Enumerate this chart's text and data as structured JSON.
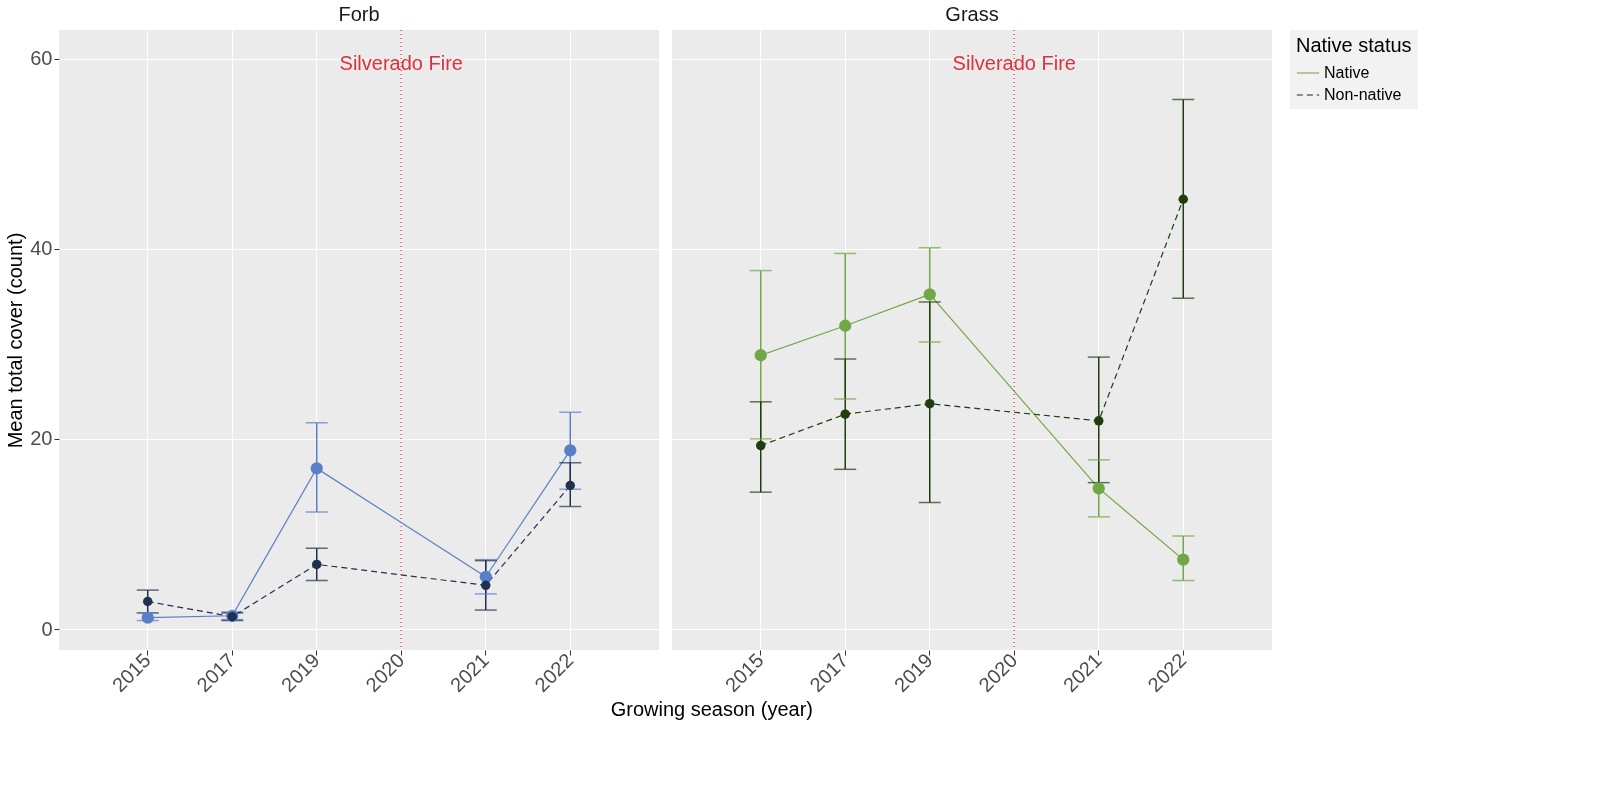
{
  "chart_data": [
    {
      "type": "line",
      "title": "Forb",
      "xlabel": "Growing season (year)",
      "ylabel": "Mean total cover (count)",
      "categories": [
        "2015",
        "2017",
        "2019",
        "2020",
        "2021",
        "2022"
      ],
      "ylim": [
        -2.2,
        63
      ],
      "yticks": [
        0,
        20,
        40,
        60
      ],
      "grid": true,
      "marker": "circle",
      "legend": false,
      "series": [
        {
          "color": "#5b7fc6",
          "line_style": "solid",
          "values": [
            1.2,
            1.4,
            16.9,
            null,
            5.5,
            18.8
          ],
          "errors": [
            [
              0.9,
              1.7
            ],
            [
              1.0,
              1.8
            ],
            [
              12.3,
              21.7
            ],
            null,
            [
              3.7,
              7.3
            ],
            [
              14.7,
              22.8
            ]
          ]
        },
        {
          "color": "#1f3050",
          "line_style": "dashed",
          "values": [
            2.9,
            1.3,
            6.8,
            null,
            4.6,
            15.1
          ],
          "errors": [
            [
              1.7,
              4.1
            ],
            [
              0.9,
              1.7
            ],
            [
              5.1,
              8.5
            ],
            null,
            [
              2.0,
              7.2
            ],
            [
              12.9,
              17.5
            ]
          ]
        }
      ],
      "ref_lines": [
        {
          "axis": "x",
          "value": "2020",
          "label": "Silverado Fire",
          "color": "#e0303a",
          "line_style": "dotted"
        }
      ]
    },
    {
      "type": "line",
      "title": "Grass",
      "categories": [
        "2015",
        "2017",
        "2019",
        "2020",
        "2021",
        "2022"
      ],
      "ylim": [
        -2.2,
        63
      ],
      "yticks": [
        0,
        20,
        40,
        60
      ],
      "grid": true,
      "marker": "circle",
      "legend": "right",
      "legend_title": "Native status",
      "tick_labels": "x",
      "series": [
        {
          "name": "Native",
          "color": "#70a845",
          "line_style": "solid",
          "values": [
            28.8,
            31.9,
            35.2,
            null,
            14.8,
            7.3
          ],
          "errors": [
            [
              20.0,
              37.7
            ],
            [
              24.2,
              39.5
            ],
            [
              30.2,
              40.1
            ],
            null,
            [
              11.8,
              17.8
            ],
            [
              5.1,
              9.8
            ]
          ]
        },
        {
          "name": "Non-native",
          "color": "#1f3d0e",
          "line_style": "dashed",
          "values": [
            19.3,
            22.6,
            23.7,
            null,
            21.9,
            45.2
          ],
          "errors": [
            [
              14.4,
              23.9
            ],
            [
              16.8,
              28.4
            ],
            [
              13.3,
              34.4
            ],
            null,
            [
              15.4,
              28.6
            ],
            [
              34.8,
              55.7
            ]
          ]
        }
      ],
      "ref_lines": [
        {
          "axis": "x",
          "value": "2020",
          "label": "Silverado Fire",
          "color": "#e0303a",
          "line_style": "dotted"
        }
      ]
    }
  ]
}
